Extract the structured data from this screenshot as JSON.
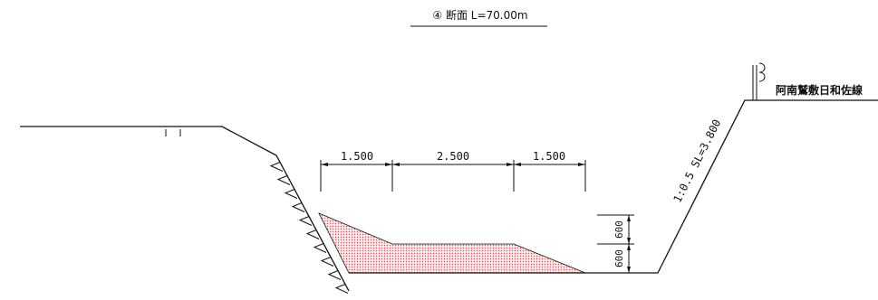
{
  "title": {
    "text": "④ 断面 L=70.00m"
  },
  "road_label": "阿南鷲敷日和佐線",
  "slope_label": "1:0.5 SL=3.800",
  "dimensions": {
    "top": [
      "1.500",
      "2.500",
      "1.500"
    ],
    "vertical": [
      "600",
      "600"
    ]
  },
  "colors": {
    "line": "#111111",
    "fill_dot": "#e0505a",
    "fill_bg": "#fde8ea"
  }
}
